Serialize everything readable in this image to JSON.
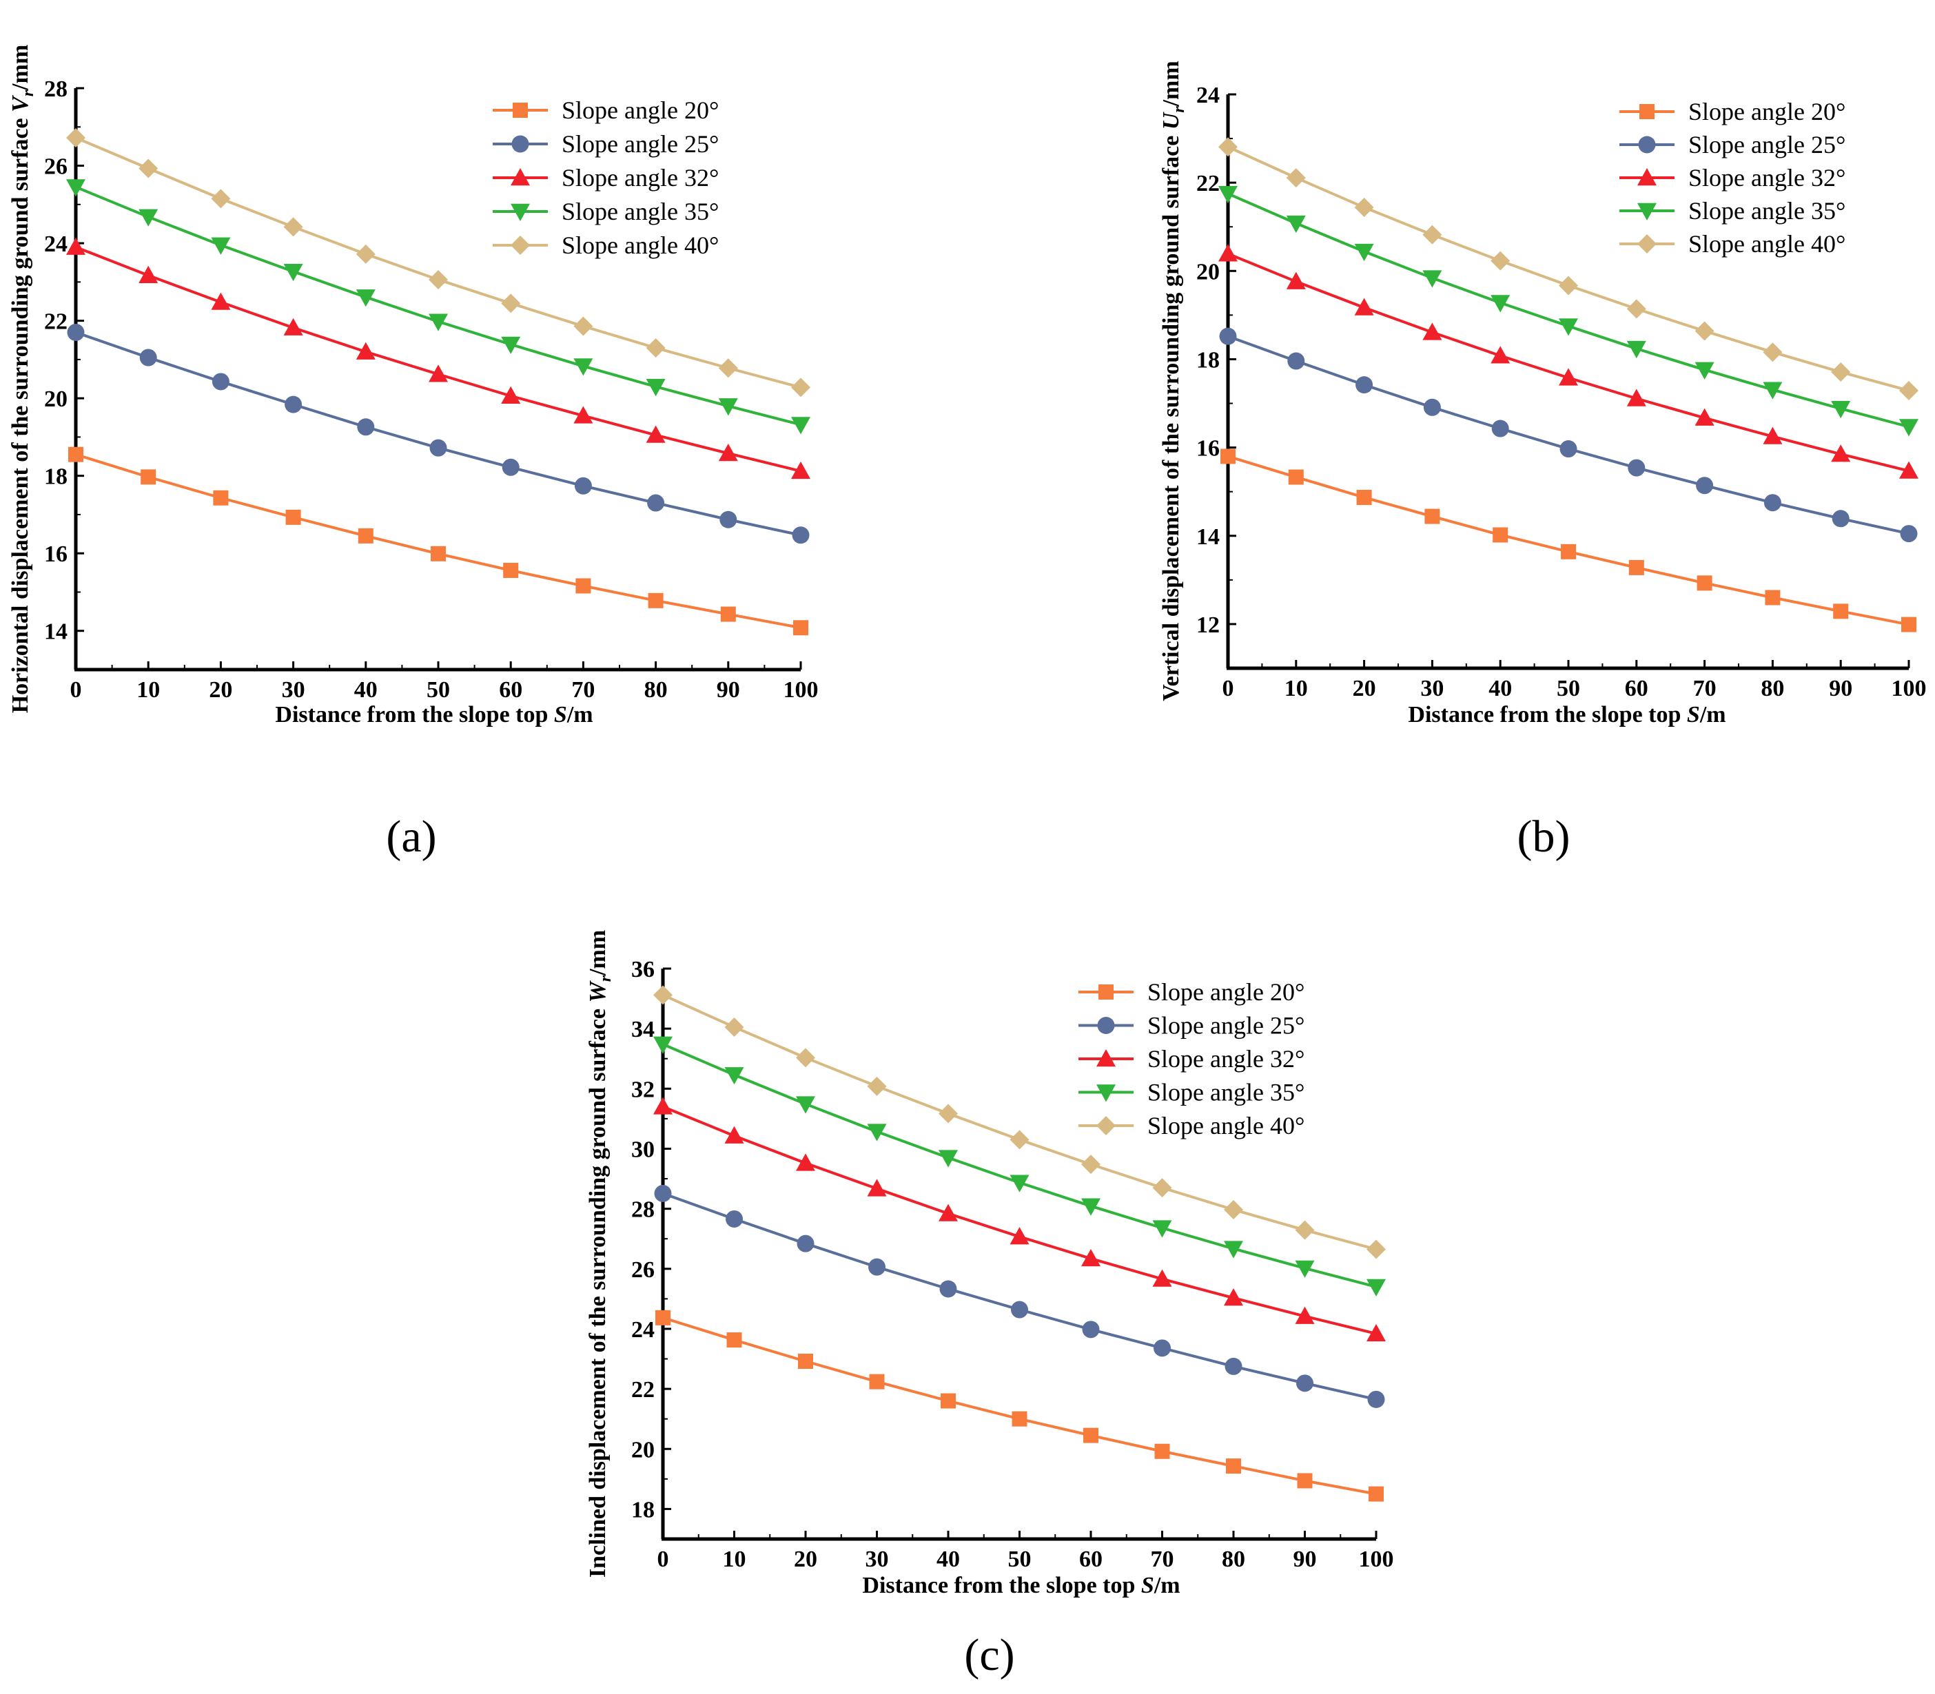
{
  "figure": {
    "colors": {
      "20": "#F77C3C",
      "25": "#5A6E9C",
      "32": "#F0202A",
      "35": "#2FB33A",
      "40": "#D8B982"
    },
    "markers": {
      "20": "square-marker",
      "25": "circle-marker",
      "32": "triangle-up-marker",
      "35": "triangle-down-marker",
      "40": "diamond-marker"
    }
  },
  "chart_data": [
    {
      "id": "a",
      "type": "line",
      "panel_label": "(a)",
      "xlabel": "Distance from the slope top S/m",
      "xlabel_parts": [
        "Distance from the slope top ",
        "S",
        "/m"
      ],
      "ylabel": "Horizontal displacement of the surrounding ground surface Vr/mm",
      "ylabel_parts": [
        "Horizontal displacement of the surrounding ground surface ",
        "V",
        "r",
        "/mm"
      ],
      "xlim": [
        0,
        100
      ],
      "ylim": [
        13,
        28
      ],
      "xticks": [
        0,
        10,
        20,
        30,
        40,
        50,
        60,
        70,
        80,
        90,
        100
      ],
      "yticks": [
        14,
        16,
        18,
        20,
        22,
        24,
        26,
        28
      ],
      "x": [
        0,
        10,
        20,
        30,
        40,
        50,
        60,
        70,
        80,
        90,
        100
      ],
      "series": [
        {
          "key": "20",
          "name": "Slope angle 20°",
          "values": [
            18.55,
            17.97,
            17.43,
            16.93,
            16.45,
            15.99,
            15.56,
            15.16,
            14.78,
            14.43,
            14.08
          ]
        },
        {
          "key": "25",
          "name": "Slope angle 25°",
          "values": [
            21.7,
            21.05,
            20.43,
            19.84,
            19.26,
            18.72,
            18.22,
            17.74,
            17.3,
            16.87,
            16.47
          ]
        },
        {
          "key": "32",
          "name": "Slope angle 32°",
          "values": [
            23.9,
            23.17,
            22.48,
            21.82,
            21.2,
            20.62,
            20.06,
            19.55,
            19.05,
            18.58,
            18.12
          ]
        },
        {
          "key": "35",
          "name": "Slope angle 35°",
          "values": [
            25.45,
            24.68,
            23.95,
            23.27,
            22.61,
            21.98,
            21.39,
            20.83,
            20.3,
            19.8,
            19.32
          ]
        },
        {
          "key": "40",
          "name": "Slope angle 40°",
          "values": [
            26.72,
            25.93,
            25.15,
            24.42,
            23.72,
            23.06,
            22.45,
            21.86,
            21.3,
            20.78,
            20.28
          ]
        }
      ]
    },
    {
      "id": "b",
      "type": "line",
      "panel_label": "(b)",
      "xlabel": "Distance from the slope top S/m",
      "xlabel_parts": [
        "Distance from the slope top ",
        "S",
        "/m"
      ],
      "ylabel": "Vertical displacement of  the surrounding ground surface Ur/mm",
      "ylabel_parts": [
        "Vertical displacement of  the surrounding ground surface ",
        "U",
        "r",
        "/mm"
      ],
      "xlim": [
        0,
        100
      ],
      "ylim": [
        11,
        24
      ],
      "xticks": [
        0,
        10,
        20,
        30,
        40,
        50,
        60,
        70,
        80,
        90,
        100
      ],
      "yticks": [
        12,
        14,
        16,
        18,
        20,
        22,
        24
      ],
      "x": [
        0,
        10,
        20,
        30,
        40,
        50,
        60,
        70,
        80,
        90,
        100
      ],
      "series": [
        {
          "key": "20",
          "name": "Slope angle 20°",
          "values": [
            15.8,
            15.33,
            14.87,
            14.44,
            14.02,
            13.64,
            13.28,
            12.93,
            12.6,
            12.29,
            11.99
          ]
        },
        {
          "key": "25",
          "name": "Slope angle 25°",
          "values": [
            18.52,
            17.96,
            17.42,
            16.91,
            16.43,
            15.97,
            15.54,
            15.14,
            14.75,
            14.39,
            14.05
          ]
        },
        {
          "key": "32",
          "name": "Slope angle 32°",
          "values": [
            20.39,
            19.76,
            19.17,
            18.61,
            18.08,
            17.58,
            17.11,
            16.67,
            16.25,
            15.85,
            15.47
          ]
        },
        {
          "key": "35",
          "name": "Slope angle 35°",
          "values": [
            21.75,
            21.08,
            20.44,
            19.84,
            19.28,
            18.75,
            18.24,
            17.76,
            17.31,
            16.88,
            16.47
          ]
        },
        {
          "key": "40",
          "name": "Slope angle 40°",
          "values": [
            22.81,
            22.11,
            21.44,
            20.82,
            20.23,
            19.67,
            19.14,
            18.64,
            18.16,
            17.71,
            17.29
          ]
        }
      ]
    },
    {
      "id": "c",
      "type": "line",
      "panel_label": "(c)",
      "xlabel": "Distance from the slope top S/m",
      "xlabel_parts": [
        "Distance from the slope top ",
        "S",
        "/m"
      ],
      "ylabel": "Inclined displacement of the surrounding ground surface Wr/mm",
      "ylabel_parts": [
        "Inclined displacement of the surrounding ground surface ",
        "W",
        "r",
        "/mm"
      ],
      "xlim": [
        0,
        100
      ],
      "ylim": [
        17,
        36
      ],
      "xticks": [
        0,
        10,
        20,
        30,
        40,
        50,
        60,
        70,
        80,
        90,
        100
      ],
      "yticks": [
        18,
        20,
        22,
        24,
        26,
        28,
        30,
        32,
        34,
        36
      ],
      "x": [
        0,
        10,
        20,
        30,
        40,
        50,
        60,
        70,
        80,
        90,
        100
      ],
      "series": [
        {
          "key": "20",
          "name": "Slope angle 20°",
          "values": [
            24.37,
            23.63,
            22.92,
            22.24,
            21.6,
            21.0,
            20.45,
            19.92,
            19.43,
            18.94,
            18.5
          ]
        },
        {
          "key": "25",
          "name": "Slope angle 25°",
          "values": [
            28.51,
            27.66,
            26.84,
            26.06,
            25.33,
            24.64,
            23.98,
            23.36,
            22.75,
            22.19,
            21.65
          ]
        },
        {
          "key": "32",
          "name": "Slope angle 32°",
          "values": [
            31.4,
            30.43,
            29.52,
            28.67,
            27.84,
            27.07,
            26.34,
            25.66,
            25.03,
            24.42,
            23.84
          ]
        },
        {
          "key": "35",
          "name": "Slope angle 35°",
          "values": [
            33.48,
            32.46,
            31.49,
            30.57,
            29.7,
            28.87,
            28.09,
            27.36,
            26.67,
            26.02,
            25.4
          ]
        },
        {
          "key": "40",
          "name": "Slope angle 40°",
          "values": [
            35.12,
            34.05,
            33.03,
            32.08,
            31.17,
            30.3,
            29.48,
            28.7,
            27.97,
            27.29,
            26.65
          ]
        }
      ]
    }
  ]
}
